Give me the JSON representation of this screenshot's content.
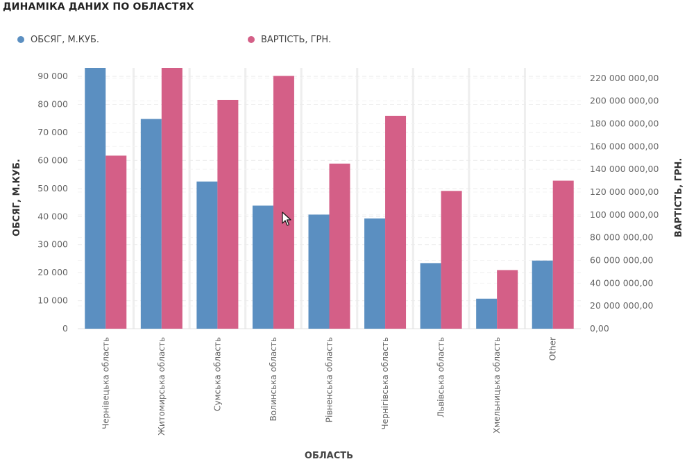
{
  "title": "ДИНАМІКА ДАНИХ ПО ОБЛАСТЯХ",
  "legend": [
    {
      "label": "ОБСЯГ, М.КУБ.",
      "color": "#5b8fc1"
    },
    {
      "label": "ВАРТІСТЬ, ГРН.",
      "color": "#d45f87"
    }
  ],
  "chart_data": {
    "type": "bar",
    "title": "ДИНАМІКА ДАНИХ ПО ОБЛАСТЯХ",
    "xlabel": "ОБЛАСТЬ",
    "ylabel": "ОБСЯГ, М.КУБ.",
    "y2label": "ВАРТІСТЬ, ГРН.",
    "categories": [
      "Чернівецька область",
      "Житомирська область",
      "Сумська область",
      "Волинська область",
      "Рівненська область",
      "Чернігівська область",
      "Львівська область",
      "Хмельницька область",
      "Other"
    ],
    "series": [
      {
        "name": "ОБСЯГ, М.КУБ.",
        "axis": "left",
        "color": "#5b8fc1",
        "values": [
          93000,
          74800,
          52500,
          43900,
          40700,
          39300,
          23400,
          10700,
          24300
        ]
      },
      {
        "name": "ВАРТІСТЬ, ГРН.",
        "axis": "right",
        "color": "#d45f87",
        "values": [
          152000000,
          229000000,
          201000000,
          222000000,
          145000000,
          187000000,
          121000000,
          51500000,
          130000000
        ]
      }
    ],
    "ylim": [
      0,
      93000
    ],
    "y2lim": [
      0,
      229000000
    ],
    "yticks": [
      "0",
      "10 000",
      "20 000",
      "30 000",
      "40 000",
      "50 000",
      "60 000",
      "70 000",
      "80 000",
      "90 000"
    ],
    "y2ticks": [
      "0,00",
      "20 000 000,00",
      "40 000 000,00",
      "60 000 000,00",
      "80 000 000,00",
      "100 000 000,00",
      "120 000 000,00",
      "140 000 000,00",
      "160 000 000,00",
      "180 000 000,00",
      "200 000 000,00",
      "220 000 000,00"
    ],
    "grid": true,
    "legend_position": "top-left"
  }
}
